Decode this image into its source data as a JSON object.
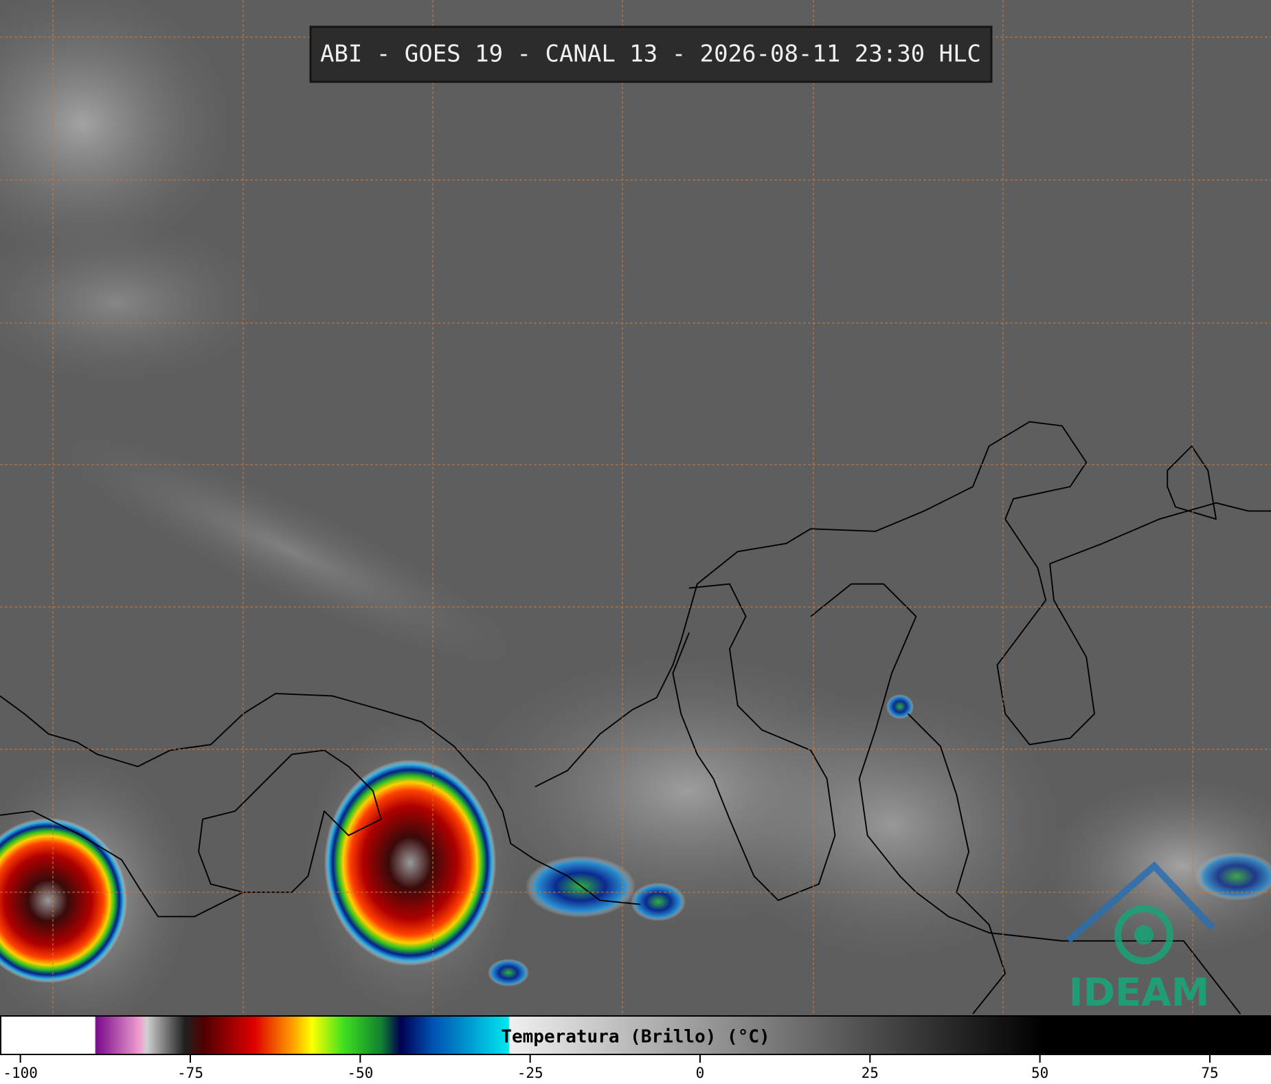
{
  "title": "ABI - GOES 19 - CANAL 13 - 2026-08-11 23:30 HLC",
  "logo": "IDEAM",
  "colorbar": {
    "label": "Temperatura (Brillo) (°C)",
    "range": [
      -103,
      84
    ],
    "ticks": [
      -100,
      -75,
      -50,
      -25,
      0,
      25,
      50,
      75
    ]
  }
}
